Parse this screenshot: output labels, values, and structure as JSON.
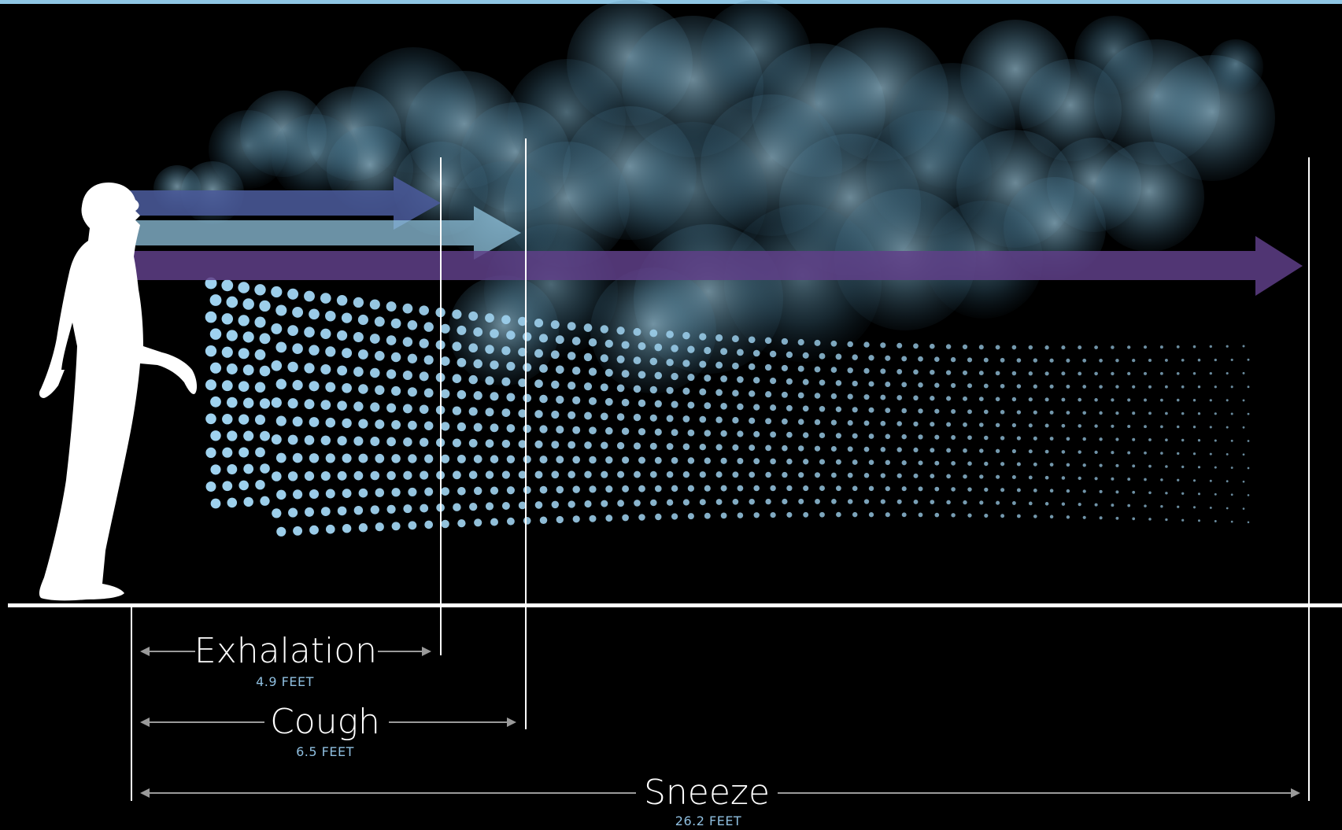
{
  "diagram": {
    "ranges": [
      {
        "id": "exhalation",
        "label": "Exhalation",
        "distance": "4.9 FEET",
        "feet": 4.9
      },
      {
        "id": "cough",
        "label": "Cough",
        "distance": "6.5 FEET",
        "feet": 6.5
      },
      {
        "id": "sneeze",
        "label": "Sneeze",
        "distance": "26.2 FEET",
        "feet": 26.2
      }
    ],
    "colors": {
      "background": "#000000",
      "top_bar": "#8fc6e4",
      "exhalation_arrow": "#4a5a9a",
      "cough_arrow": "#8fc2dc",
      "sneeze_arrow": "#5f3f88",
      "cloud": "#a9d6ec",
      "droplets": "#9fd2ef",
      "measure_line": "#9a9a9a",
      "label_text": "#ffffff",
      "distance_text": "#8fbfe0"
    },
    "icons": {
      "person": "person-silhouette-icon"
    }
  }
}
